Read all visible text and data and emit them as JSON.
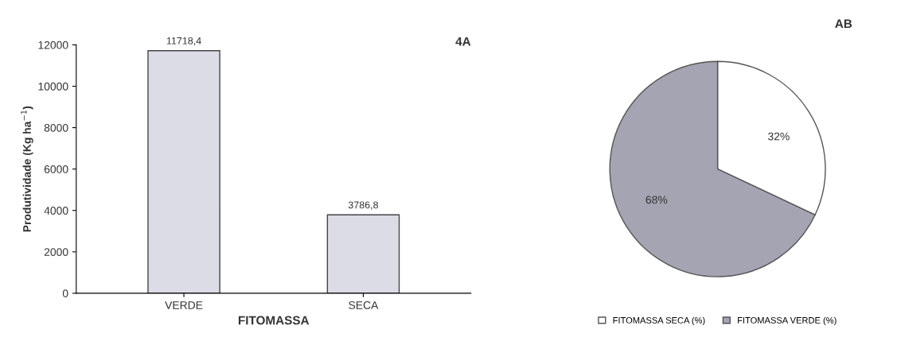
{
  "chart_data": [
    {
      "type": "bar",
      "title": "4A",
      "xlabel": "FITOMASSA",
      "ylabel": "Produtividade (Kg ha$^{−1}$)",
      "categories": [
        "VERDE",
        "SECA"
      ],
      "values": [
        11718.4,
        3786.8
      ],
      "value_labels": [
        "11718,4",
        "3786,8"
      ],
      "color": "#dcdce6",
      "ylim": [
        0,
        12000
      ],
      "yticks": [
        0,
        2000,
        4000,
        6000,
        8000,
        10000,
        12000
      ],
      "grid": false
    },
    {
      "type": "pie",
      "title": "AB",
      "categories": [
        "FITOMASSA SECA (%)",
        "FITOMASSA VERDE (%)"
      ],
      "values": [
        32,
        68
      ],
      "value_labels": [
        "32%",
        "68%"
      ],
      "colors": [
        "#ffffff",
        "#a4a4b2"
      ],
      "legend": "bottom"
    }
  ]
}
